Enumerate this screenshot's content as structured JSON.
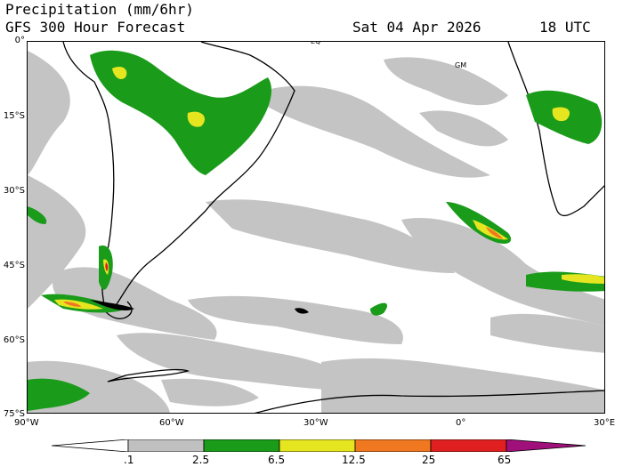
{
  "header": {
    "title_line1": "Precipitation (mm/6hr)",
    "title_line2": "GFS 300 Hour Forecast",
    "valid_date": "Sat 04 Apr 2026",
    "valid_time": "18 UTC"
  },
  "map": {
    "lat_labels": [
      "0°",
      "15°S",
      "30°S",
      "45°S",
      "60°S",
      "75°S"
    ],
    "lon_labels": [
      "90°W",
      "60°W",
      "30°W",
      "0°",
      "30°E"
    ],
    "point_labels": {
      "equator": "EQ",
      "greenwich_meridian": "GM"
    }
  },
  "colorbar": {
    "labels": [
      ".1",
      "2.5",
      "6.5",
      "12.5",
      "25",
      "65"
    ],
    "colors": [
      "#ffffff",
      "#c0c0c0",
      "#1a9b1a",
      "#e6e620",
      "#f07820",
      "#e02020",
      "#a0107a"
    ]
  }
}
